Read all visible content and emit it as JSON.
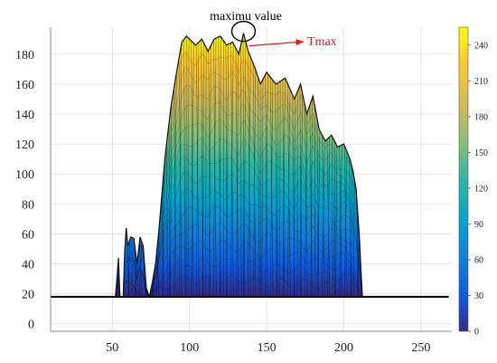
{
  "chart_data": {
    "type": "area",
    "title": "",
    "xlabel": "",
    "ylabel": "",
    "xlim": [
      10,
      270
    ],
    "ylim": [
      -5,
      198
    ],
    "x_ticks": [
      50,
      100,
      150,
      200,
      250
    ],
    "y_ticks": [
      0,
      20,
      40,
      60,
      80,
      100,
      120,
      140,
      160,
      180
    ],
    "grid": true,
    "baseline": 18,
    "profile": {
      "x": [
        10,
        52,
        53,
        54,
        55,
        57,
        58,
        59,
        60,
        62,
        64,
        66,
        68,
        70,
        72,
        74,
        76,
        78,
        80,
        84,
        88,
        92,
        95,
        98,
        100,
        104,
        108,
        112,
        116,
        120,
        124,
        128,
        132,
        135,
        138,
        142,
        146,
        150,
        156,
        162,
        168,
        172,
        176,
        180,
        184,
        188,
        192,
        196,
        200,
        204,
        206,
        208,
        210,
        212,
        268
      ],
      "y": [
        18,
        18,
        30,
        44,
        18,
        18,
        48,
        64,
        52,
        58,
        57,
        40,
        58,
        52,
        24,
        18,
        28,
        40,
        60,
        110,
        145,
        170,
        188,
        192,
        190,
        186,
        190,
        182,
        190,
        192,
        186,
        188,
        180,
        194,
        182,
        172,
        160,
        168,
        160,
        164,
        150,
        160,
        140,
        152,
        130,
        122,
        126,
        118,
        120,
        110,
        102,
        90,
        60,
        18,
        18
      ]
    },
    "colorbar": {
      "ticks": [
        0,
        30,
        60,
        90,
        120,
        150,
        180,
        210,
        240
      ],
      "range": [
        0,
        255
      ],
      "colormap": "parula"
    },
    "annotations": {
      "peak_label": "maximu value",
      "tmax_label": "Tmax",
      "peak_x": 135,
      "peak_y": 194
    }
  }
}
